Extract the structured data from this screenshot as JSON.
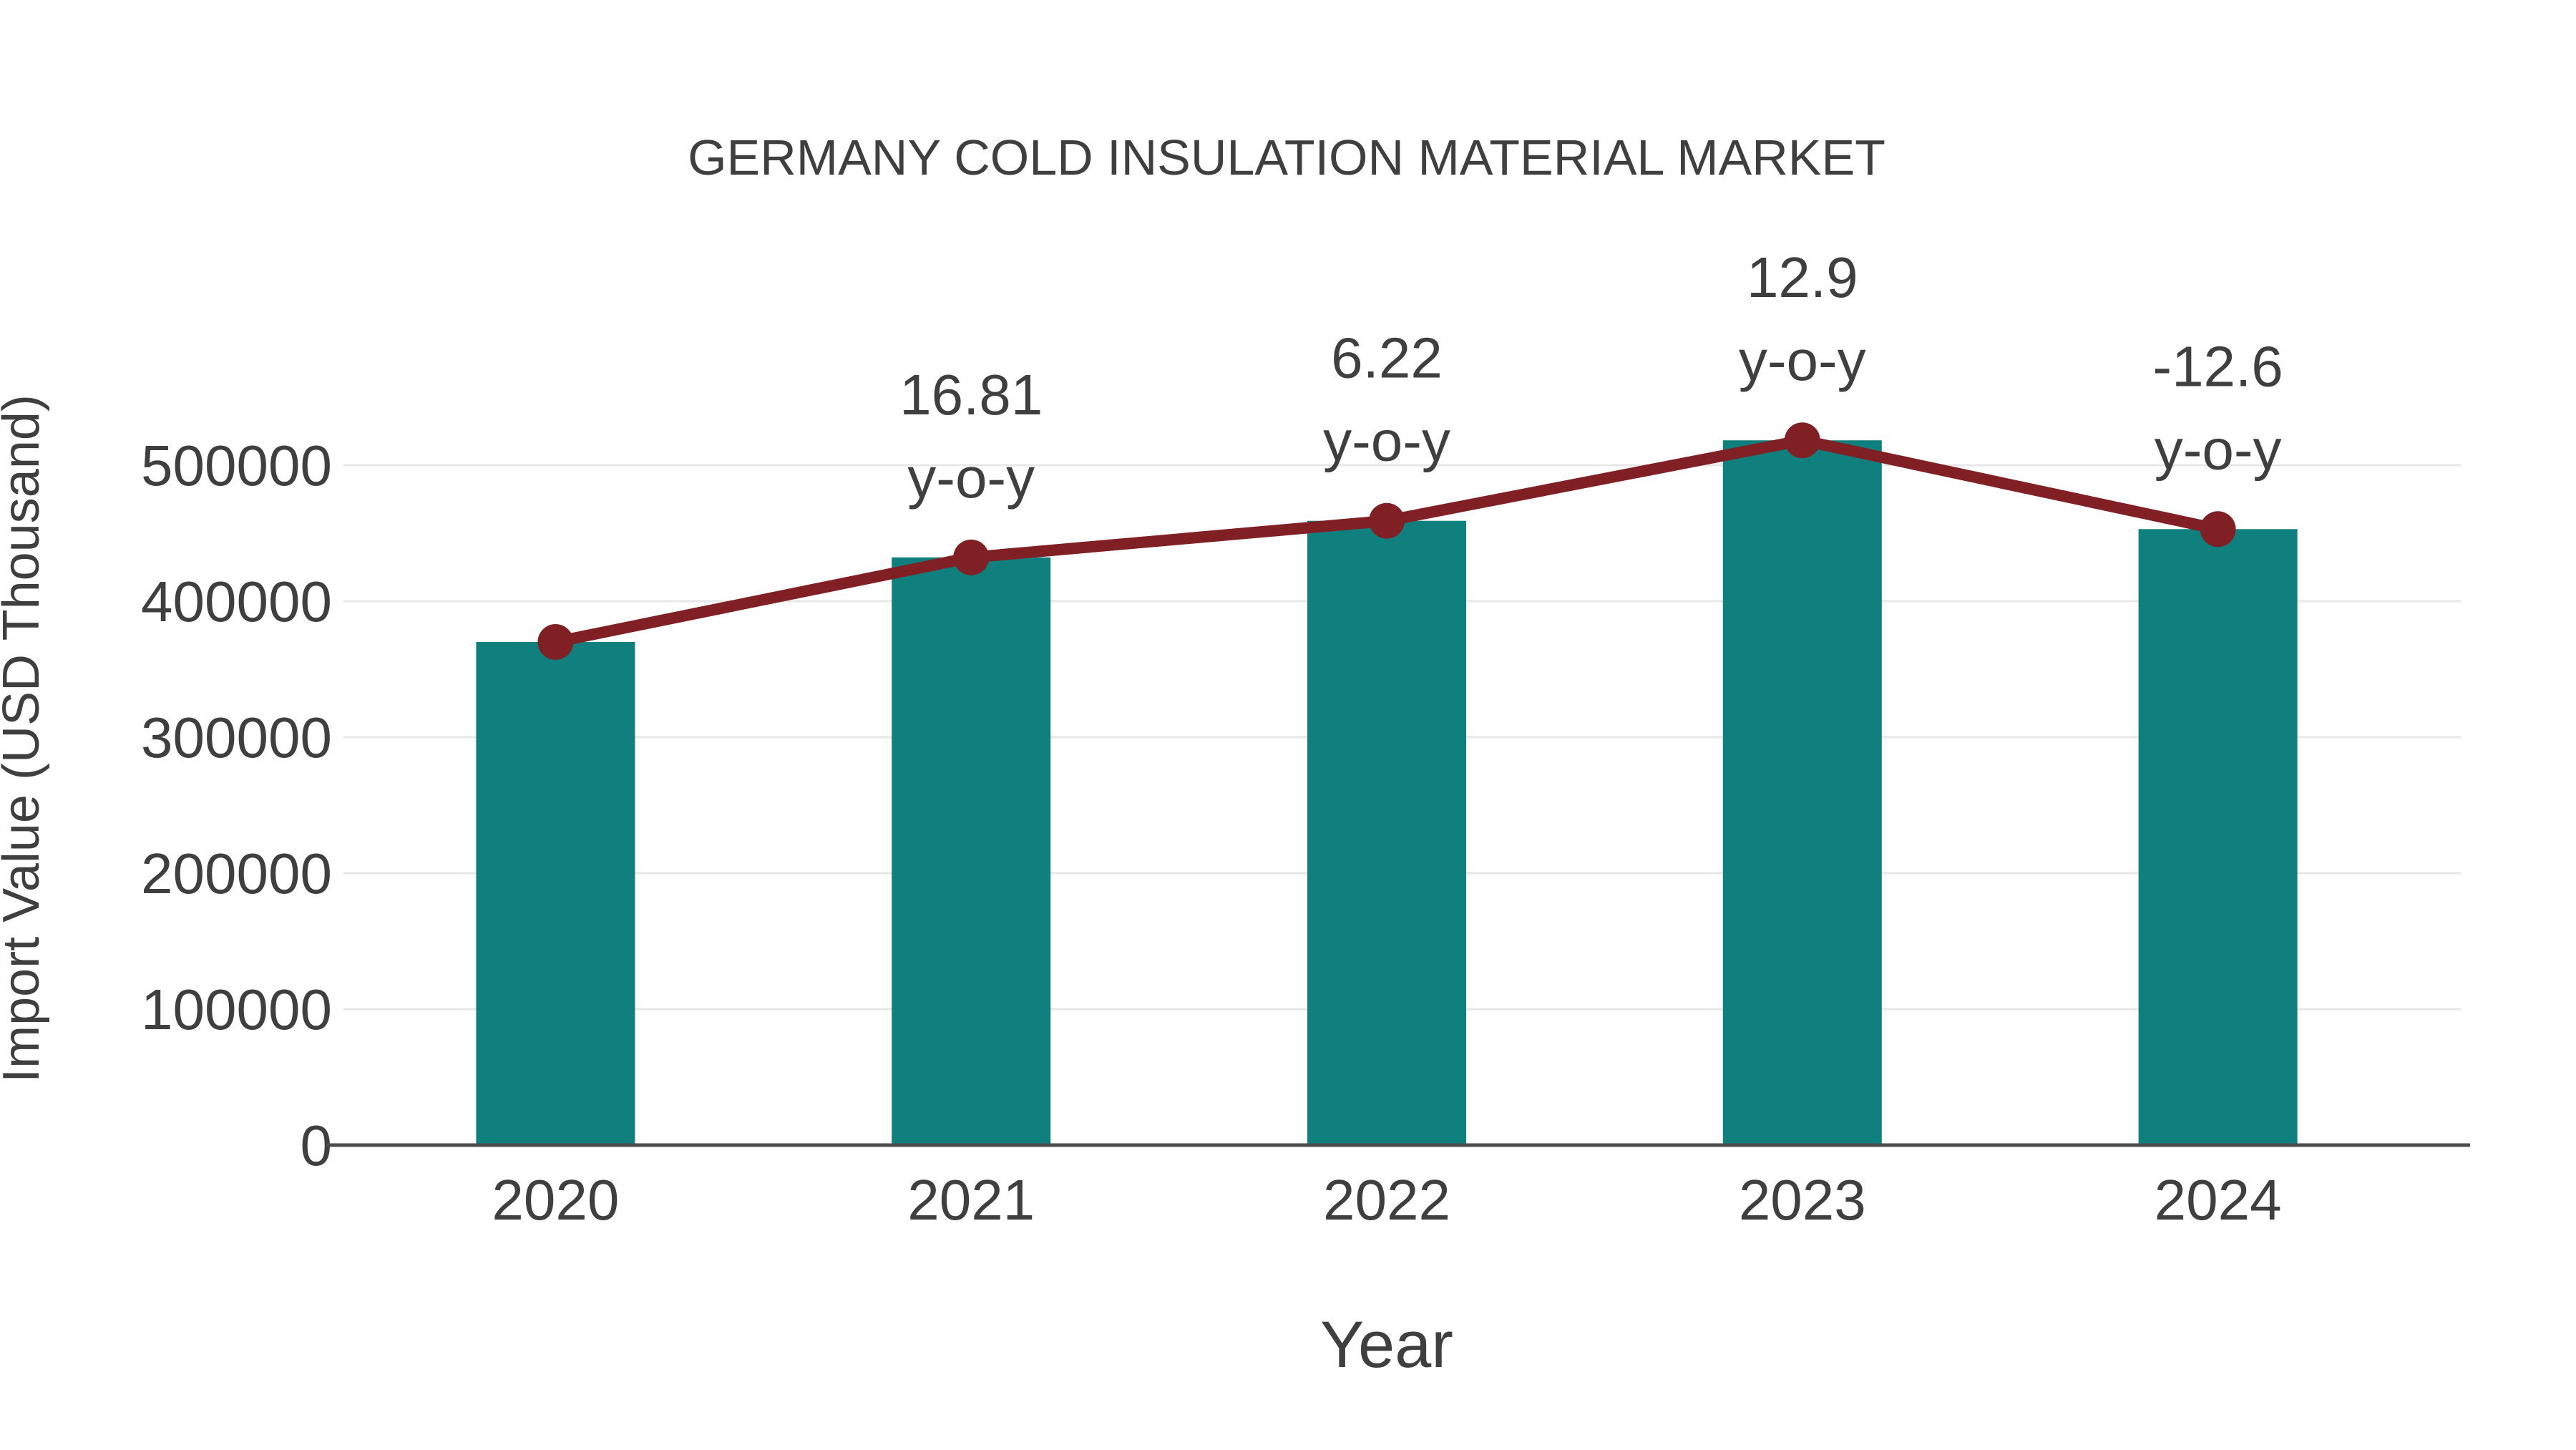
{
  "chart_data": {
    "type": "bar",
    "title": "GERMANY COLD INSULATION MATERIAL MARKET",
    "xlabel": "Year",
    "ylabel": "Import Value (USD Thousand)",
    "categories": [
      "2020",
      "2021",
      "2022",
      "2023",
      "2024"
    ],
    "series": [
      {
        "type": "bar",
        "values": [
          370000,
          432200,
          459100,
          518300,
          453000
        ]
      },
      {
        "type": "line",
        "values": [
          370000,
          432200,
          459100,
          518300,
          453000
        ],
        "markers": true
      }
    ],
    "annotations": [
      {
        "x": "2021",
        "lines": [
          "16.81",
          "y-o-y"
        ]
      },
      {
        "x": "2022",
        "lines": [
          "6.22",
          "y-o-y"
        ]
      },
      {
        "x": "2023",
        "lines": [
          "12.9",
          "y-o-y"
        ]
      },
      {
        "x": "2024",
        "lines": [
          "-12.6",
          "y-o-y"
        ]
      }
    ],
    "yticks": [
      0,
      100000,
      200000,
      300000,
      400000,
      500000
    ],
    "ylim": [
      0,
      550000
    ],
    "grid": true,
    "legend_position": "none",
    "colors": {
      "bar": "#10807f",
      "line": "#802024",
      "marker": "#802024",
      "text": "#3f3f3f",
      "grid": "#e7e7e7",
      "axis": "#4d4d4d",
      "background": "#ffffff"
    }
  }
}
